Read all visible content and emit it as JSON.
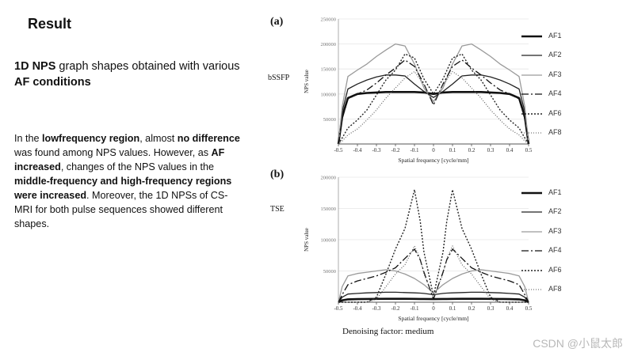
{
  "slide": {
    "title": "Result",
    "heading_parts": [
      {
        "text": "1D NPS",
        "bold": true
      },
      {
        "text": " graph shapes obtained with various ",
        "bold": false
      },
      {
        "text": "AF conditions",
        "bold": true
      }
    ],
    "body_parts": [
      {
        "text": "In the ",
        "bold": false
      },
      {
        "text": "lowfrequency region",
        "bold": true
      },
      {
        "text": ", almost ",
        "bold": false
      },
      {
        "text": "no difference",
        "bold": true
      },
      {
        "text": " was found among NPS values. However, as ",
        "bold": false
      },
      {
        "text": "AF increased",
        "bold": true
      },
      {
        "text": ", changes of the NPS values in the ",
        "bold": false
      },
      {
        "text": "middle-frequency and high-frequency regions were increased",
        "bold": true
      },
      {
        "text": ". Moreover, the 1D NPSs of CS-MRI for both pulse sequences showed different shapes.",
        "bold": false
      }
    ],
    "caption": "Denoising factor: medium",
    "watermark": "CSDN @小鼠太郎"
  },
  "chart_data": [
    {
      "panel_label": "(a)",
      "sequence": "bSSFP",
      "type": "line",
      "xlabel": "Spatial frequency [cycle/mm]",
      "ylabel": "NPS value",
      "xlim": [
        -0.5,
        0.5
      ],
      "ylim": [
        0,
        250000
      ],
      "xticks": [
        "-0.5",
        "-0.4",
        "-0.3",
        "-0.2",
        "-0.1",
        "0",
        "0.1",
        "0.2",
        "0.3",
        "0.4",
        "0.5"
      ],
      "yticks": [
        "50000",
        "100000",
        "150000",
        "200000",
        "250000"
      ],
      "x": [
        -0.5,
        -0.48,
        -0.45,
        -0.4,
        -0.35,
        -0.3,
        -0.25,
        -0.2,
        -0.15,
        -0.1,
        -0.05,
        0,
        0.05,
        0.1,
        0.15,
        0.2,
        0.25,
        0.3,
        0.35,
        0.4,
        0.45,
        0.48,
        0.5
      ],
      "series": [
        {
          "name": "AF1",
          "stroke": "#111111",
          "width": 2.6,
          "dash": "",
          "values": [
            0,
            55000,
            92000,
            100000,
            102000,
            103000,
            104000,
            104000,
            104000,
            104000,
            103000,
            100000,
            103000,
            104000,
            104000,
            104000,
            104000,
            103000,
            102000,
            100000,
            92000,
            55000,
            0
          ]
        },
        {
          "name": "AF2",
          "stroke": "#222222",
          "width": 1.3,
          "dash": "",
          "values": [
            0,
            65000,
            110000,
            120000,
            128000,
            134000,
            138000,
            138000,
            136000,
            120000,
            105000,
            93000,
            105000,
            120000,
            136000,
            138000,
            138000,
            134000,
            128000,
            120000,
            110000,
            65000,
            0
          ]
        },
        {
          "name": "AF3",
          "stroke": "#9a9a9a",
          "width": 1.3,
          "dash": "",
          "values": [
            0,
            75000,
            135000,
            148000,
            160000,
            175000,
            188000,
            200000,
            196000,
            160000,
            112000,
            85000,
            112000,
            160000,
            196000,
            200000,
            188000,
            175000,
            160000,
            148000,
            135000,
            75000,
            0
          ]
        },
        {
          "name": "AF4",
          "stroke": "#111111",
          "width": 1.3,
          "dash": "9,3,2,3",
          "values": [
            0,
            50000,
            90000,
            100000,
            108000,
            122000,
            138000,
            152000,
            168000,
            155000,
            120000,
            78000,
            120000,
            155000,
            168000,
            152000,
            138000,
            122000,
            108000,
            100000,
            90000,
            50000,
            0
          ]
        },
        {
          "name": "AF6",
          "stroke": "#222222",
          "width": 1.4,
          "dash": "2,2",
          "values": [
            0,
            12000,
            32000,
            48000,
            68000,
            98000,
            128000,
            148000,
            180000,
            172000,
            130000,
            100000,
            130000,
            172000,
            180000,
            148000,
            128000,
            98000,
            68000,
            48000,
            32000,
            12000,
            0
          ]
        },
        {
          "name": "AF8",
          "stroke": "#555555",
          "width": 1.1,
          "dash": "1,2",
          "values": [
            0,
            6000,
            18000,
            30000,
            48000,
            68000,
            92000,
            112000,
            132000,
            145000,
            118000,
            80000,
            118000,
            145000,
            132000,
            112000,
            92000,
            68000,
            48000,
            30000,
            18000,
            6000,
            0
          ]
        }
      ]
    },
    {
      "panel_label": "(b)",
      "sequence": "TSE",
      "type": "line",
      "xlabel": "Spatial frequency [cycle/mm]",
      "ylabel": "NPS value",
      "xlim": [
        -0.5,
        0.5
      ],
      "ylim": [
        0,
        200000
      ],
      "xticks": [
        "-0.5",
        "-0.4",
        "-0.3",
        "-0.2",
        "-0.1",
        "0",
        "0.1",
        "0.2",
        "0.3",
        "0.4",
        "0.5"
      ],
      "yticks": [
        "50000",
        "100000",
        "150000",
        "200000"
      ],
      "x": [
        -0.5,
        -0.48,
        -0.45,
        -0.4,
        -0.35,
        -0.3,
        -0.25,
        -0.2,
        -0.15,
        -0.1,
        -0.07,
        -0.05,
        0,
        0.05,
        0.07,
        0.1,
        0.15,
        0.2,
        0.25,
        0.3,
        0.35,
        0.4,
        0.45,
        0.48,
        0.5
      ],
      "series": [
        {
          "name": "AF1",
          "stroke": "#111111",
          "width": 2.6,
          "dash": "",
          "values": [
            0,
            3000,
            4500,
            5000,
            5200,
            5300,
            5400,
            5400,
            5400,
            5300,
            5200,
            5200,
            5000,
            5200,
            5200,
            5300,
            5400,
            5400,
            5400,
            5300,
            5200,
            5000,
            4500,
            3000,
            0
          ]
        },
        {
          "name": "AF2",
          "stroke": "#222222",
          "width": 1.3,
          "dash": "",
          "values": [
            0,
            8000,
            13000,
            14000,
            15000,
            15500,
            16000,
            16000,
            15500,
            15000,
            14500,
            14000,
            12000,
            14000,
            14500,
            15000,
            15500,
            16000,
            16000,
            15500,
            15000,
            14000,
            13000,
            8000,
            0
          ]
        },
        {
          "name": "AF3",
          "stroke": "#9a9a9a",
          "width": 1.3,
          "dash": "",
          "values": [
            0,
            25000,
            42000,
            46000,
            48000,
            50000,
            52000,
            50000,
            45000,
            38000,
            32000,
            28000,
            15000,
            28000,
            32000,
            38000,
            45000,
            50000,
            52000,
            50000,
            48000,
            46000,
            42000,
            25000,
            0
          ]
        },
        {
          "name": "AF4",
          "stroke": "#111111",
          "width": 1.3,
          "dash": "9,3,2,3",
          "values": [
            0,
            12000,
            28000,
            34000,
            38000,
            42000,
            48000,
            55000,
            70000,
            85000,
            68000,
            48000,
            5000,
            48000,
            68000,
            85000,
            70000,
            55000,
            48000,
            42000,
            38000,
            34000,
            28000,
            12000,
            0
          ]
        },
        {
          "name": "AF6",
          "stroke": "#222222",
          "width": 1.4,
          "dash": "2,2",
          "values": [
            0,
            0,
            0,
            0,
            0,
            8000,
            45000,
            85000,
            118000,
            180000,
            130000,
            80000,
            10000,
            80000,
            130000,
            180000,
            118000,
            85000,
            45000,
            8000,
            0,
            0,
            0,
            0,
            0
          ]
        },
        {
          "name": "AF8",
          "stroke": "#555555",
          "width": 1.1,
          "dash": "1,2",
          "values": [
            0,
            0,
            0,
            0,
            0,
            5000,
            25000,
            45000,
            60000,
            90000,
            70000,
            45000,
            8000,
            45000,
            70000,
            90000,
            60000,
            45000,
            25000,
            5000,
            0,
            0,
            0,
            0,
            0
          ]
        }
      ]
    }
  ]
}
